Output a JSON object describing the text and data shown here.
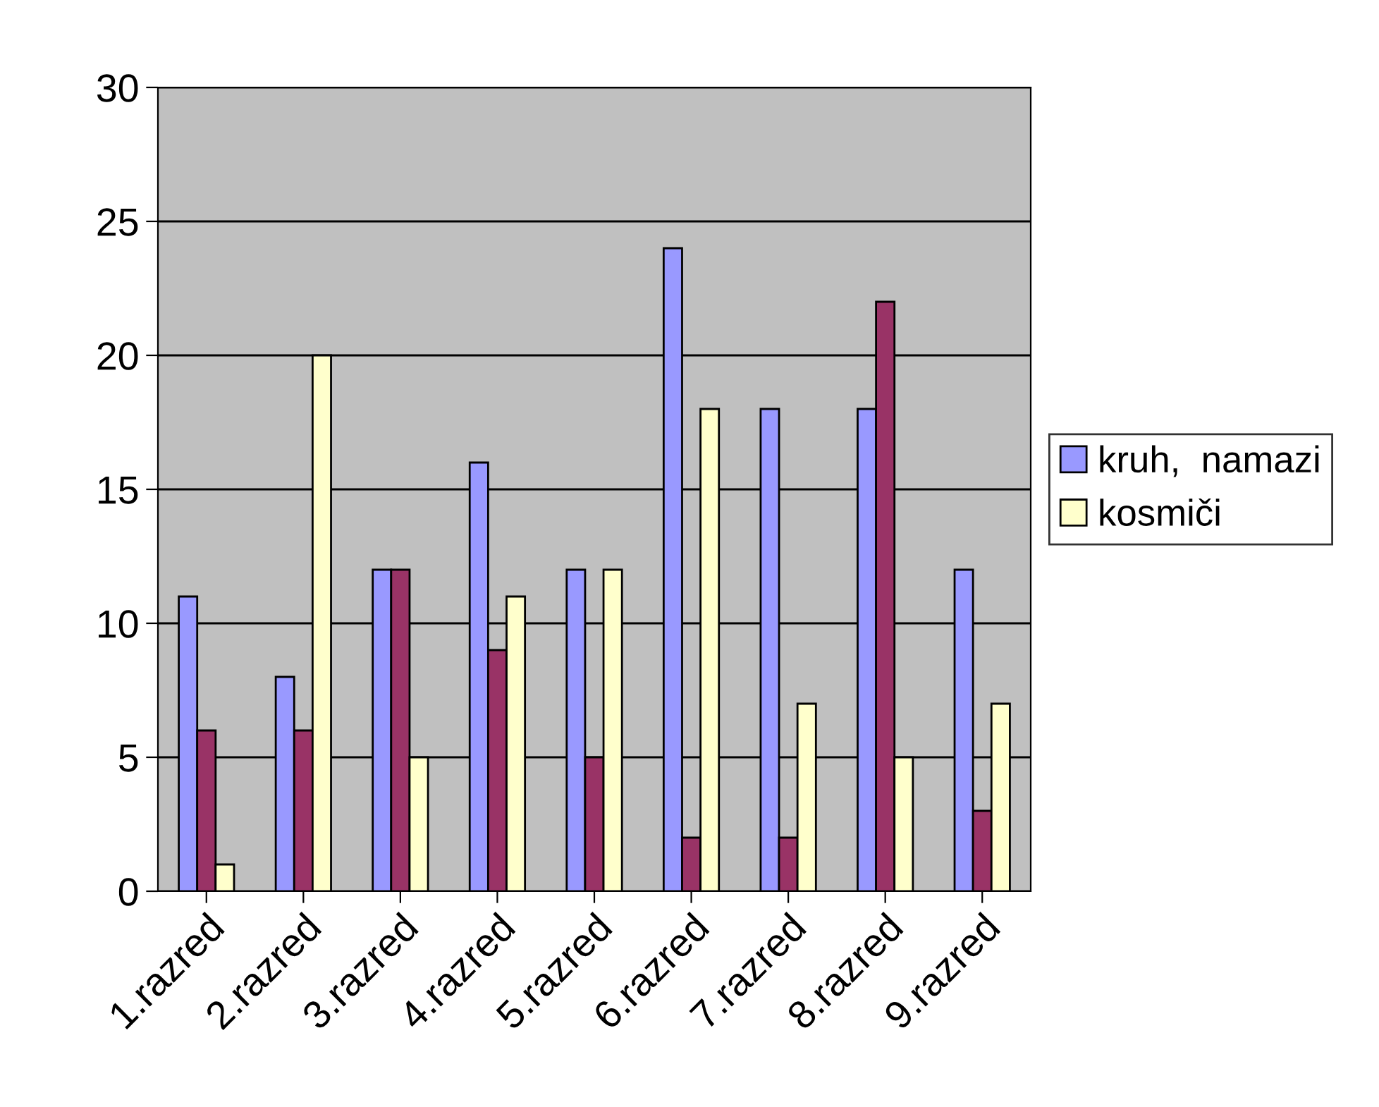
{
  "chart_data": {
    "type": "bar",
    "categories": [
      "1.razred",
      "2.razred",
      "3.razred",
      "4.razred",
      "5.razred",
      "6.razred",
      "7.razred",
      "8.razred",
      "9.razred"
    ],
    "series": [
      {
        "name": "kruh,  namazi",
        "color": "#9999ff",
        "values": [
          11,
          8,
          12,
          16,
          12,
          24,
          18,
          18,
          12
        ]
      },
      {
        "color": "#993366",
        "values": [
          6,
          6,
          12,
          9,
          5,
          2,
          2,
          22,
          3
        ]
      },
      {
        "name": "kosmiči",
        "color": "#ffffcc",
        "values": [
          1,
          20,
          5,
          11,
          12,
          18,
          7,
          5,
          7
        ]
      }
    ],
    "ylim": [
      0,
      30
    ],
    "yticks": [
      0,
      5,
      10,
      15,
      20,
      25,
      30
    ],
    "grid": "y",
    "legend": "right"
  }
}
